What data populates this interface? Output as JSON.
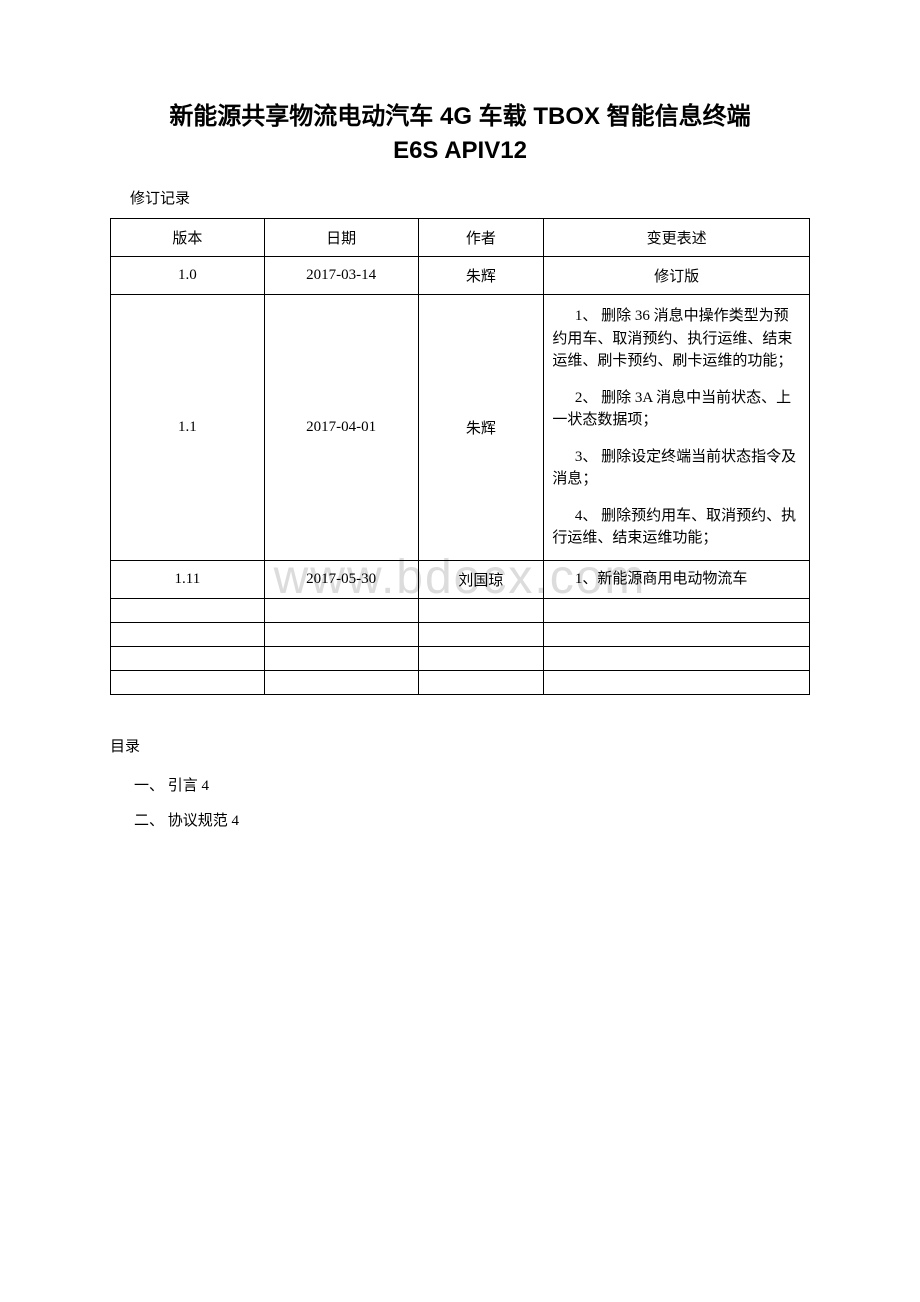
{
  "title": {
    "line1": "新能源共享物流电动汽车 4G 车载 TBOX 智能信息终端",
    "line2": "E6S APIV12"
  },
  "revision_label": "修订记录",
  "watermark": "www.bdocx.com",
  "table": {
    "headers": {
      "version": "版本",
      "date": "日期",
      "author": "作者",
      "desc": "变更表述"
    },
    "rows": [
      {
        "version": "1.0",
        "date": "2017-03-14",
        "author": "朱辉",
        "desc_simple": "修订版"
      },
      {
        "version": "1.1",
        "date": "2017-04-01",
        "author": "朱辉",
        "desc_items": [
          "1、 删除 36 消息中操作类型为预约用车、取消预约、执行运维、结束运维、刷卡预约、刷卡运维的功能；",
          "2、 删除 3A 消息中当前状态、上一状态数据项；",
          "3、 删除设定终端当前状态指令及消息；",
          "4、 删除预约用车、取消预约、执行运维、结束运维功能；"
        ]
      },
      {
        "version": "1.11",
        "date": "2017-05-30",
        "author": "刘国琼",
        "desc_single": "1、新能源商用电动物流车"
      }
    ]
  },
  "toc": {
    "title": "目录",
    "items": [
      "一、 引言 4",
      "二、 协议规范 4"
    ]
  },
  "colors": {
    "text": "#000000",
    "border": "#000000",
    "background": "#ffffff",
    "watermark": "#dcdcdc"
  }
}
